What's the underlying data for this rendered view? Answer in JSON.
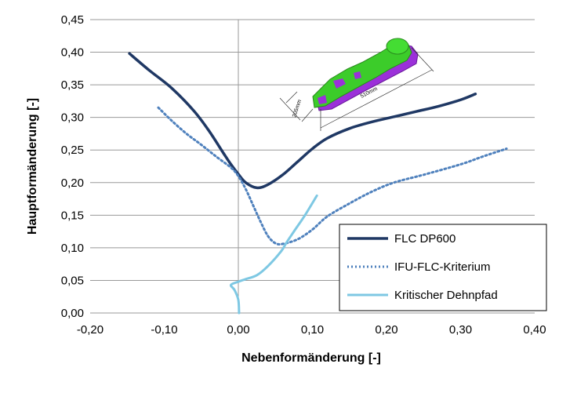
{
  "chart_data": {
    "type": "line",
    "xlabel": "Nebenformänderung [-]",
    "ylabel": "Hauptformänderung [-]",
    "xlim": [
      -0.2,
      0.4
    ],
    "ylim": [
      0.0,
      0.45
    ],
    "x_ticks": [
      "-0,20",
      "-0,10",
      "0,00",
      "0,10",
      "0,20",
      "0,30",
      "0,40"
    ],
    "y_ticks": [
      "0,00",
      "0,05",
      "0,10",
      "0,15",
      "0,20",
      "0,25",
      "0,30",
      "0,35",
      "0,40",
      "0,45"
    ],
    "grid": "horizontal",
    "legend_position": "bottom-right",
    "series": [
      {
        "name": "FLC DP600",
        "style": "solid",
        "color": "#1f3864",
        "x": [
          -0.147,
          -0.12,
          -0.09,
          -0.06,
          -0.04,
          -0.02,
          -0.01,
          0.0,
          0.01,
          0.025,
          0.04,
          0.06,
          0.08,
          0.1,
          0.12,
          0.15,
          0.18,
          0.21,
          0.24,
          0.27,
          0.3,
          0.32
        ],
        "y": [
          0.398,
          0.372,
          0.345,
          0.31,
          0.28,
          0.245,
          0.228,
          0.213,
          0.2,
          0.192,
          0.197,
          0.212,
          0.232,
          0.252,
          0.268,
          0.283,
          0.293,
          0.301,
          0.309,
          0.317,
          0.327,
          0.336
        ]
      },
      {
        "name": "IFU-FLC-Kriterium",
        "style": "dotted",
        "color": "#4f81bd",
        "x": [
          -0.108,
          -0.09,
          -0.07,
          -0.05,
          -0.03,
          -0.01,
          0.0,
          0.01,
          0.02,
          0.03,
          0.04,
          0.05,
          0.06,
          0.08,
          0.1,
          0.12,
          0.15,
          0.18,
          0.21,
          0.25,
          0.3,
          0.33,
          0.362
        ],
        "y": [
          0.315,
          0.295,
          0.275,
          0.258,
          0.24,
          0.223,
          0.21,
          0.19,
          0.165,
          0.14,
          0.118,
          0.107,
          0.106,
          0.113,
          0.128,
          0.148,
          0.168,
          0.186,
          0.2,
          0.212,
          0.228,
          0.24,
          0.252
        ]
      },
      {
        "name": "Kritischer Dehnpfad",
        "style": "solid",
        "color": "#7ec8e3",
        "x": [
          0.001,
          0.0,
          -0.005,
          -0.01,
          0.0,
          0.01,
          0.025,
          0.04,
          0.058,
          0.065,
          0.075,
          0.09,
          0.106
        ],
        "y": [
          0.0,
          0.02,
          0.035,
          0.043,
          0.048,
          0.052,
          0.058,
          0.072,
          0.095,
          0.108,
          0.125,
          0.15,
          0.18
        ]
      }
    ],
    "inset_dimensions": [
      "205mm",
      "510mm"
    ]
  }
}
